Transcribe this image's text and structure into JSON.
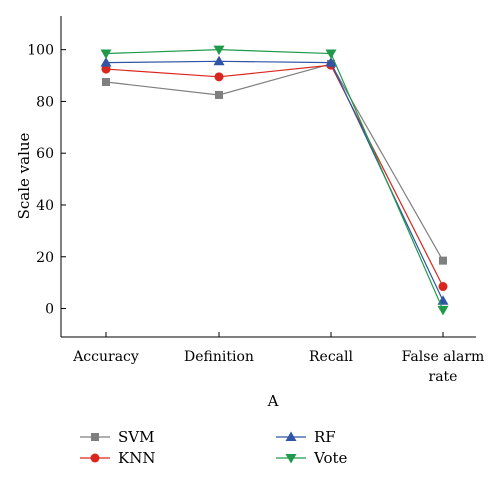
{
  "chart_data": {
    "type": "line",
    "title": "",
    "xlabel": "A",
    "ylabel": "Scale value",
    "categories": [
      [
        "Accuracy"
      ],
      [
        "Definition"
      ],
      [
        "Recall"
      ],
      [
        "False alarm",
        "rate"
      ]
    ],
    "yticks": [
      0,
      20,
      40,
      60,
      80,
      100
    ],
    "ylim": [
      -11,
      113
    ],
    "grid": false,
    "legend_position": "bottom",
    "series": [
      {
        "name": "SVM",
        "color": "#7f7f7f",
        "marker": "square",
        "values": [
          87.5,
          82.5,
          94.5,
          18.5
        ]
      },
      {
        "name": "KNN",
        "color": "#d9271f",
        "marker": "circle",
        "values": [
          92.5,
          89.5,
          94.0,
          8.5
        ]
      },
      {
        "name": "RF",
        "color": "#2f55a4",
        "marker": "triangle-up",
        "values": [
          95.0,
          95.5,
          95.0,
          3.0
        ]
      },
      {
        "name": "Vote",
        "color": "#1f9a4a",
        "marker": "triangle-down",
        "values": [
          98.5,
          100.0,
          98.5,
          -0.5
        ]
      }
    ]
  }
}
